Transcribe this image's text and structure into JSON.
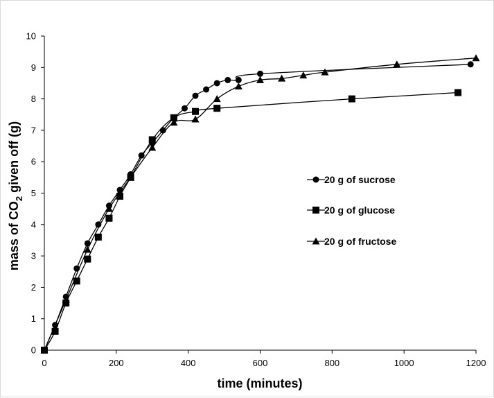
{
  "chart_data": {
    "type": "line",
    "title": "",
    "xlabel": "time (minutes)",
    "ylabel_parts": {
      "pre": "mass of CO",
      "sub": "2",
      "post": " given off (g)"
    },
    "xlim": [
      0,
      1200
    ],
    "ylim": [
      0,
      10
    ],
    "xticks": [
      0,
      200,
      400,
      600,
      800,
      1000,
      1200
    ],
    "yticks": [
      0,
      1,
      2,
      3,
      4,
      5,
      6,
      7,
      8,
      9,
      10
    ],
    "grid": false,
    "legend_position": "right-middle",
    "series": [
      {
        "name": "20 g of sucrose",
        "marker": "circle",
        "x": [
          0,
          30,
          60,
          90,
          120,
          150,
          180,
          210,
          240,
          270,
          300,
          330,
          360,
          390,
          420,
          450,
          480,
          510,
          540,
          600,
          1185
        ],
        "y": [
          0,
          0.8,
          1.7,
          2.6,
          3.4,
          4.0,
          4.6,
          5.1,
          5.6,
          6.2,
          6.6,
          7.0,
          7.4,
          7.7,
          8.1,
          8.3,
          8.5,
          8.6,
          8.6,
          8.8,
          9.1
        ]
      },
      {
        "name": "20 g of glucose",
        "marker": "square",
        "x": [
          0,
          30,
          60,
          90,
          120,
          150,
          180,
          210,
          240,
          300,
          360,
          420,
          480,
          855,
          1150
        ],
        "y": [
          0,
          0.6,
          1.5,
          2.2,
          2.9,
          3.6,
          4.2,
          4.9,
          5.5,
          6.7,
          7.4,
          7.6,
          7.7,
          8.0,
          8.2
        ]
      },
      {
        "name": "20 g of fructose",
        "marker": "triangle",
        "x": [
          0,
          60,
          120,
          180,
          240,
          300,
          360,
          420,
          480,
          540,
          600,
          660,
          720,
          780,
          980,
          1200
        ],
        "y": [
          0,
          1.6,
          3.2,
          4.5,
          5.5,
          6.45,
          7.25,
          7.35,
          8.0,
          8.4,
          8.6,
          8.65,
          8.75,
          8.85,
          9.1,
          9.3
        ]
      }
    ]
  }
}
